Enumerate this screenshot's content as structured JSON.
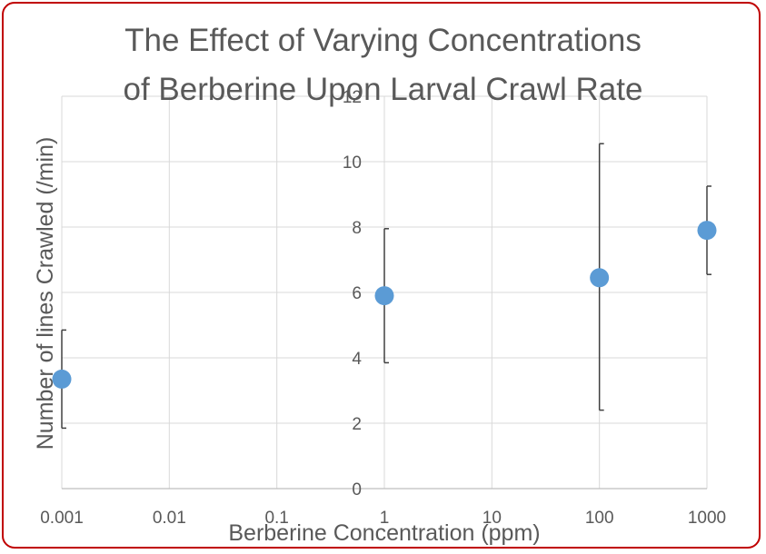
{
  "chart_data": {
    "type": "scatter",
    "title_line1": "The Effect of Varying Concentrations",
    "title_line2": "of Berberine Upon Larval Crawl Rate",
    "xlabel": "Berberine Concentration (ppm)",
    "ylabel": "Number of lines Crawled (/min)",
    "x_scale": "log",
    "xlim": [
      0.001,
      1000
    ],
    "ylim": [
      0,
      12
    ],
    "x_ticks": [
      "0.001",
      "0.01",
      "0.1",
      "1",
      "10",
      "100",
      "1000"
    ],
    "y_ticks": [
      "0",
      "2",
      "4",
      "6",
      "8",
      "10",
      "12"
    ],
    "grid": true,
    "series": [
      {
        "color": "#5b9bd5",
        "points": [
          {
            "x": 0.001,
            "y": 3.35,
            "err_low": 1.85,
            "err_high": 4.85
          },
          {
            "x": 1,
            "y": 5.9,
            "err_low": 3.85,
            "err_high": 7.95
          },
          {
            "x": 100,
            "y": 6.45,
            "err_low": 2.4,
            "err_high": 10.55
          },
          {
            "x": 1000,
            "y": 7.9,
            "err_low": 6.55,
            "err_high": 9.25
          }
        ]
      }
    ]
  }
}
